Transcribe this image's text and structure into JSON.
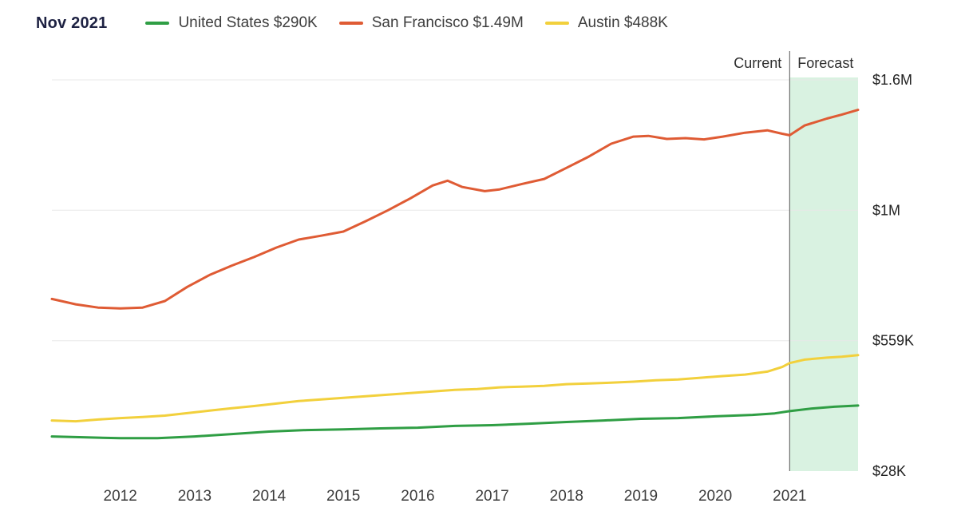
{
  "header": {
    "date_label": "Nov 2021",
    "legend": [
      {
        "name": "United States",
        "value": "$290K",
        "label": "United States $290K",
        "color": "#2f9e44"
      },
      {
        "name": "San Francisco",
        "value": "$1.49M",
        "label": "San Francisco $1.49M",
        "color": "#df5b34"
      },
      {
        "name": "Austin",
        "value": "$488K",
        "label": "Austin $488K",
        "color": "#f2d03c"
      }
    ]
  },
  "chart_data": {
    "type": "line",
    "title": "",
    "xlabel": "",
    "ylabel": "",
    "grid": "horizontal",
    "legend_position": "top",
    "xlim": [
      2011.08,
      2021.92
    ],
    "forecast_start_x": 2021.0,
    "annotations": {
      "current": "Current",
      "forecast": "Forecast"
    },
    "x_ticks": [
      {
        "v": 2012,
        "label": "2012"
      },
      {
        "v": 2013,
        "label": "2013"
      },
      {
        "v": 2014,
        "label": "2014"
      },
      {
        "v": 2015,
        "label": "2015"
      },
      {
        "v": 2016,
        "label": "2016"
      },
      {
        "v": 2017,
        "label": "2017"
      },
      {
        "v": 2018,
        "label": "2018"
      },
      {
        "v": 2019,
        "label": "2019"
      },
      {
        "v": 2020,
        "label": "2020"
      },
      {
        "v": 2021,
        "label": "2021"
      }
    ],
    "y_ticks": [
      {
        "v": 28000,
        "label": "$28K"
      },
      {
        "v": 559000,
        "label": "$559K"
      },
      {
        "v": 1000000,
        "label": "$1M"
      },
      {
        "v": 1600000,
        "label": "$1.6M"
      }
    ],
    "y_scale": "even-tick-piecewise-linear",
    "colors": {
      "forecast_region": "#d9f2e1",
      "grid": "#e8e8e8",
      "divider": "#555555",
      "axis_text": "#222222",
      "x_axis_text": "#3c3c3c",
      "annotation_text": "#2e2e2e"
    },
    "series": [
      {
        "id": "united-states",
        "name": "United States",
        "current_value_label": "$290K",
        "color": "#2f9e44",
        "points": [
          [
            2011.08,
            169000
          ],
          [
            2011.5,
            166000
          ],
          [
            2012.0,
            162000
          ],
          [
            2012.5,
            162000
          ],
          [
            2013.0,
            169000
          ],
          [
            2013.5,
            179000
          ],
          [
            2014.0,
            189000
          ],
          [
            2014.5,
            195000
          ],
          [
            2015.0,
            198000
          ],
          [
            2015.5,
            202000
          ],
          [
            2016.0,
            205000
          ],
          [
            2016.5,
            212000
          ],
          [
            2017.0,
            215000
          ],
          [
            2017.5,
            221000
          ],
          [
            2018.0,
            228000
          ],
          [
            2018.5,
            234000
          ],
          [
            2019.0,
            241000
          ],
          [
            2019.5,
            244000
          ],
          [
            2020.0,
            251000
          ],
          [
            2020.5,
            257000
          ],
          [
            2020.8,
            263000
          ],
          [
            2021.0,
            272000
          ],
          [
            2021.3,
            283000
          ],
          [
            2021.6,
            290000
          ],
          [
            2021.92,
            295000
          ]
        ]
      },
      {
        "id": "san-francisco",
        "name": "San Francisco",
        "current_value_label": "$1.49M",
        "color": "#df5b34",
        "points": [
          [
            2011.08,
            700000
          ],
          [
            2011.4,
            682000
          ],
          [
            2011.7,
            671000
          ],
          [
            2012.0,
            668000
          ],
          [
            2012.3,
            671000
          ],
          [
            2012.6,
            693000
          ],
          [
            2012.9,
            741000
          ],
          [
            2013.2,
            781000
          ],
          [
            2013.5,
            813000
          ],
          [
            2013.8,
            842000
          ],
          [
            2014.1,
            874000
          ],
          [
            2014.4,
            901000
          ],
          [
            2014.7,
            914000
          ],
          [
            2015.0,
            928000
          ],
          [
            2015.3,
            963000
          ],
          [
            2015.6,
            1000000
          ],
          [
            2015.9,
            1055000
          ],
          [
            2016.2,
            1114000
          ],
          [
            2016.4,
            1136000
          ],
          [
            2016.6,
            1107000
          ],
          [
            2016.9,
            1088000
          ],
          [
            2017.1,
            1096000
          ],
          [
            2017.4,
            1121000
          ],
          [
            2017.7,
            1144000
          ],
          [
            2018.0,
            1195000
          ],
          [
            2018.3,
            1247000
          ],
          [
            2018.6,
            1306000
          ],
          [
            2018.9,
            1339000
          ],
          [
            2019.1,
            1342000
          ],
          [
            2019.35,
            1328000
          ],
          [
            2019.6,
            1332000
          ],
          [
            2019.85,
            1326000
          ],
          [
            2020.1,
            1339000
          ],
          [
            2020.4,
            1357000
          ],
          [
            2020.7,
            1368000
          ],
          [
            2020.9,
            1352000
          ],
          [
            2021.0,
            1345000
          ],
          [
            2021.2,
            1390000
          ],
          [
            2021.5,
            1422000
          ],
          [
            2021.7,
            1440000
          ],
          [
            2021.92,
            1462000
          ]
        ]
      },
      {
        "id": "austin",
        "name": "Austin",
        "current_value_label": "$488K",
        "color": "#f2d03c",
        "points": [
          [
            2011.08,
            234000
          ],
          [
            2011.4,
            231000
          ],
          [
            2011.7,
            238000
          ],
          [
            2012.0,
            244000
          ],
          [
            2012.3,
            248000
          ],
          [
            2012.6,
            254000
          ],
          [
            2012.9,
            264000
          ],
          [
            2013.2,
            274000
          ],
          [
            2013.5,
            284000
          ],
          [
            2013.8,
            293000
          ],
          [
            2014.1,
            303000
          ],
          [
            2014.4,
            313000
          ],
          [
            2014.7,
            320000
          ],
          [
            2015.0,
            326000
          ],
          [
            2015.3,
            333000
          ],
          [
            2015.6,
            339000
          ],
          [
            2015.9,
            346000
          ],
          [
            2016.2,
            352000
          ],
          [
            2016.5,
            359000
          ],
          [
            2016.8,
            362000
          ],
          [
            2017.1,
            369000
          ],
          [
            2017.4,
            372000
          ],
          [
            2017.7,
            375000
          ],
          [
            2018.0,
            382000
          ],
          [
            2018.3,
            385000
          ],
          [
            2018.6,
            388000
          ],
          [
            2018.9,
            392000
          ],
          [
            2019.2,
            398000
          ],
          [
            2019.5,
            401000
          ],
          [
            2019.8,
            408000
          ],
          [
            2020.1,
            415000
          ],
          [
            2020.4,
            421000
          ],
          [
            2020.7,
            433000
          ],
          [
            2020.9,
            452000
          ],
          [
            2021.0,
            468000
          ],
          [
            2021.2,
            482000
          ],
          [
            2021.5,
            490000
          ],
          [
            2021.7,
            494000
          ],
          [
            2021.92,
            500000
          ]
        ]
      }
    ]
  }
}
